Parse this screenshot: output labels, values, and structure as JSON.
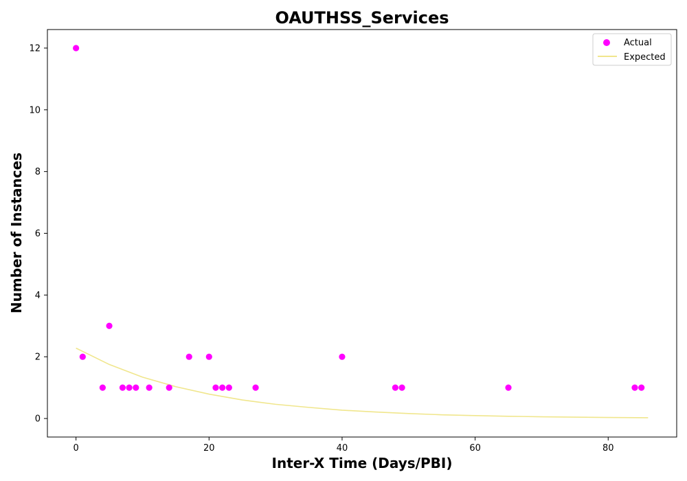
{
  "chart_data": {
    "type": "scatter",
    "title": "OAUTHSS_Services",
    "xlabel": "Inter-X Time (Days/PBI)",
    "ylabel": "Number of Instances",
    "xlim": [
      -4.3,
      90.3
    ],
    "ylim": [
      -0.6,
      12.6
    ],
    "xticks": [
      0,
      20,
      40,
      60,
      80
    ],
    "yticks": [
      0,
      2,
      4,
      6,
      8,
      10,
      12
    ],
    "grid": false,
    "legend": "top-right",
    "series": [
      {
        "name": "Actual",
        "kind": "scatter",
        "color": "#ff00ff",
        "points": [
          [
            0,
            12
          ],
          [
            1,
            2
          ],
          [
            4,
            1
          ],
          [
            5,
            3
          ],
          [
            7,
            1
          ],
          [
            8,
            1
          ],
          [
            9,
            1
          ],
          [
            11,
            1
          ],
          [
            14,
            1
          ],
          [
            17,
            2
          ],
          [
            20,
            2
          ],
          [
            21,
            1
          ],
          [
            22,
            1
          ],
          [
            23,
            1
          ],
          [
            27,
            1
          ],
          [
            40,
            2
          ],
          [
            48,
            1
          ],
          [
            49,
            1
          ],
          [
            65,
            1
          ],
          [
            84,
            1
          ],
          [
            85,
            1
          ]
        ]
      },
      {
        "name": "Expected",
        "kind": "line",
        "color": "#f0e68c",
        "points": [
          [
            0,
            2.28
          ],
          [
            5,
            1.75
          ],
          [
            10,
            1.34
          ],
          [
            15,
            1.03
          ],
          [
            20,
            0.79
          ],
          [
            25,
            0.6
          ],
          [
            30,
            0.46
          ],
          [
            35,
            0.36
          ],
          [
            40,
            0.27
          ],
          [
            45,
            0.21
          ],
          [
            50,
            0.16
          ],
          [
            55,
            0.12
          ],
          [
            60,
            0.095
          ],
          [
            65,
            0.073
          ],
          [
            70,
            0.056
          ],
          [
            75,
            0.043
          ],
          [
            80,
            0.033
          ],
          [
            86,
            0.024
          ]
        ]
      }
    ]
  }
}
